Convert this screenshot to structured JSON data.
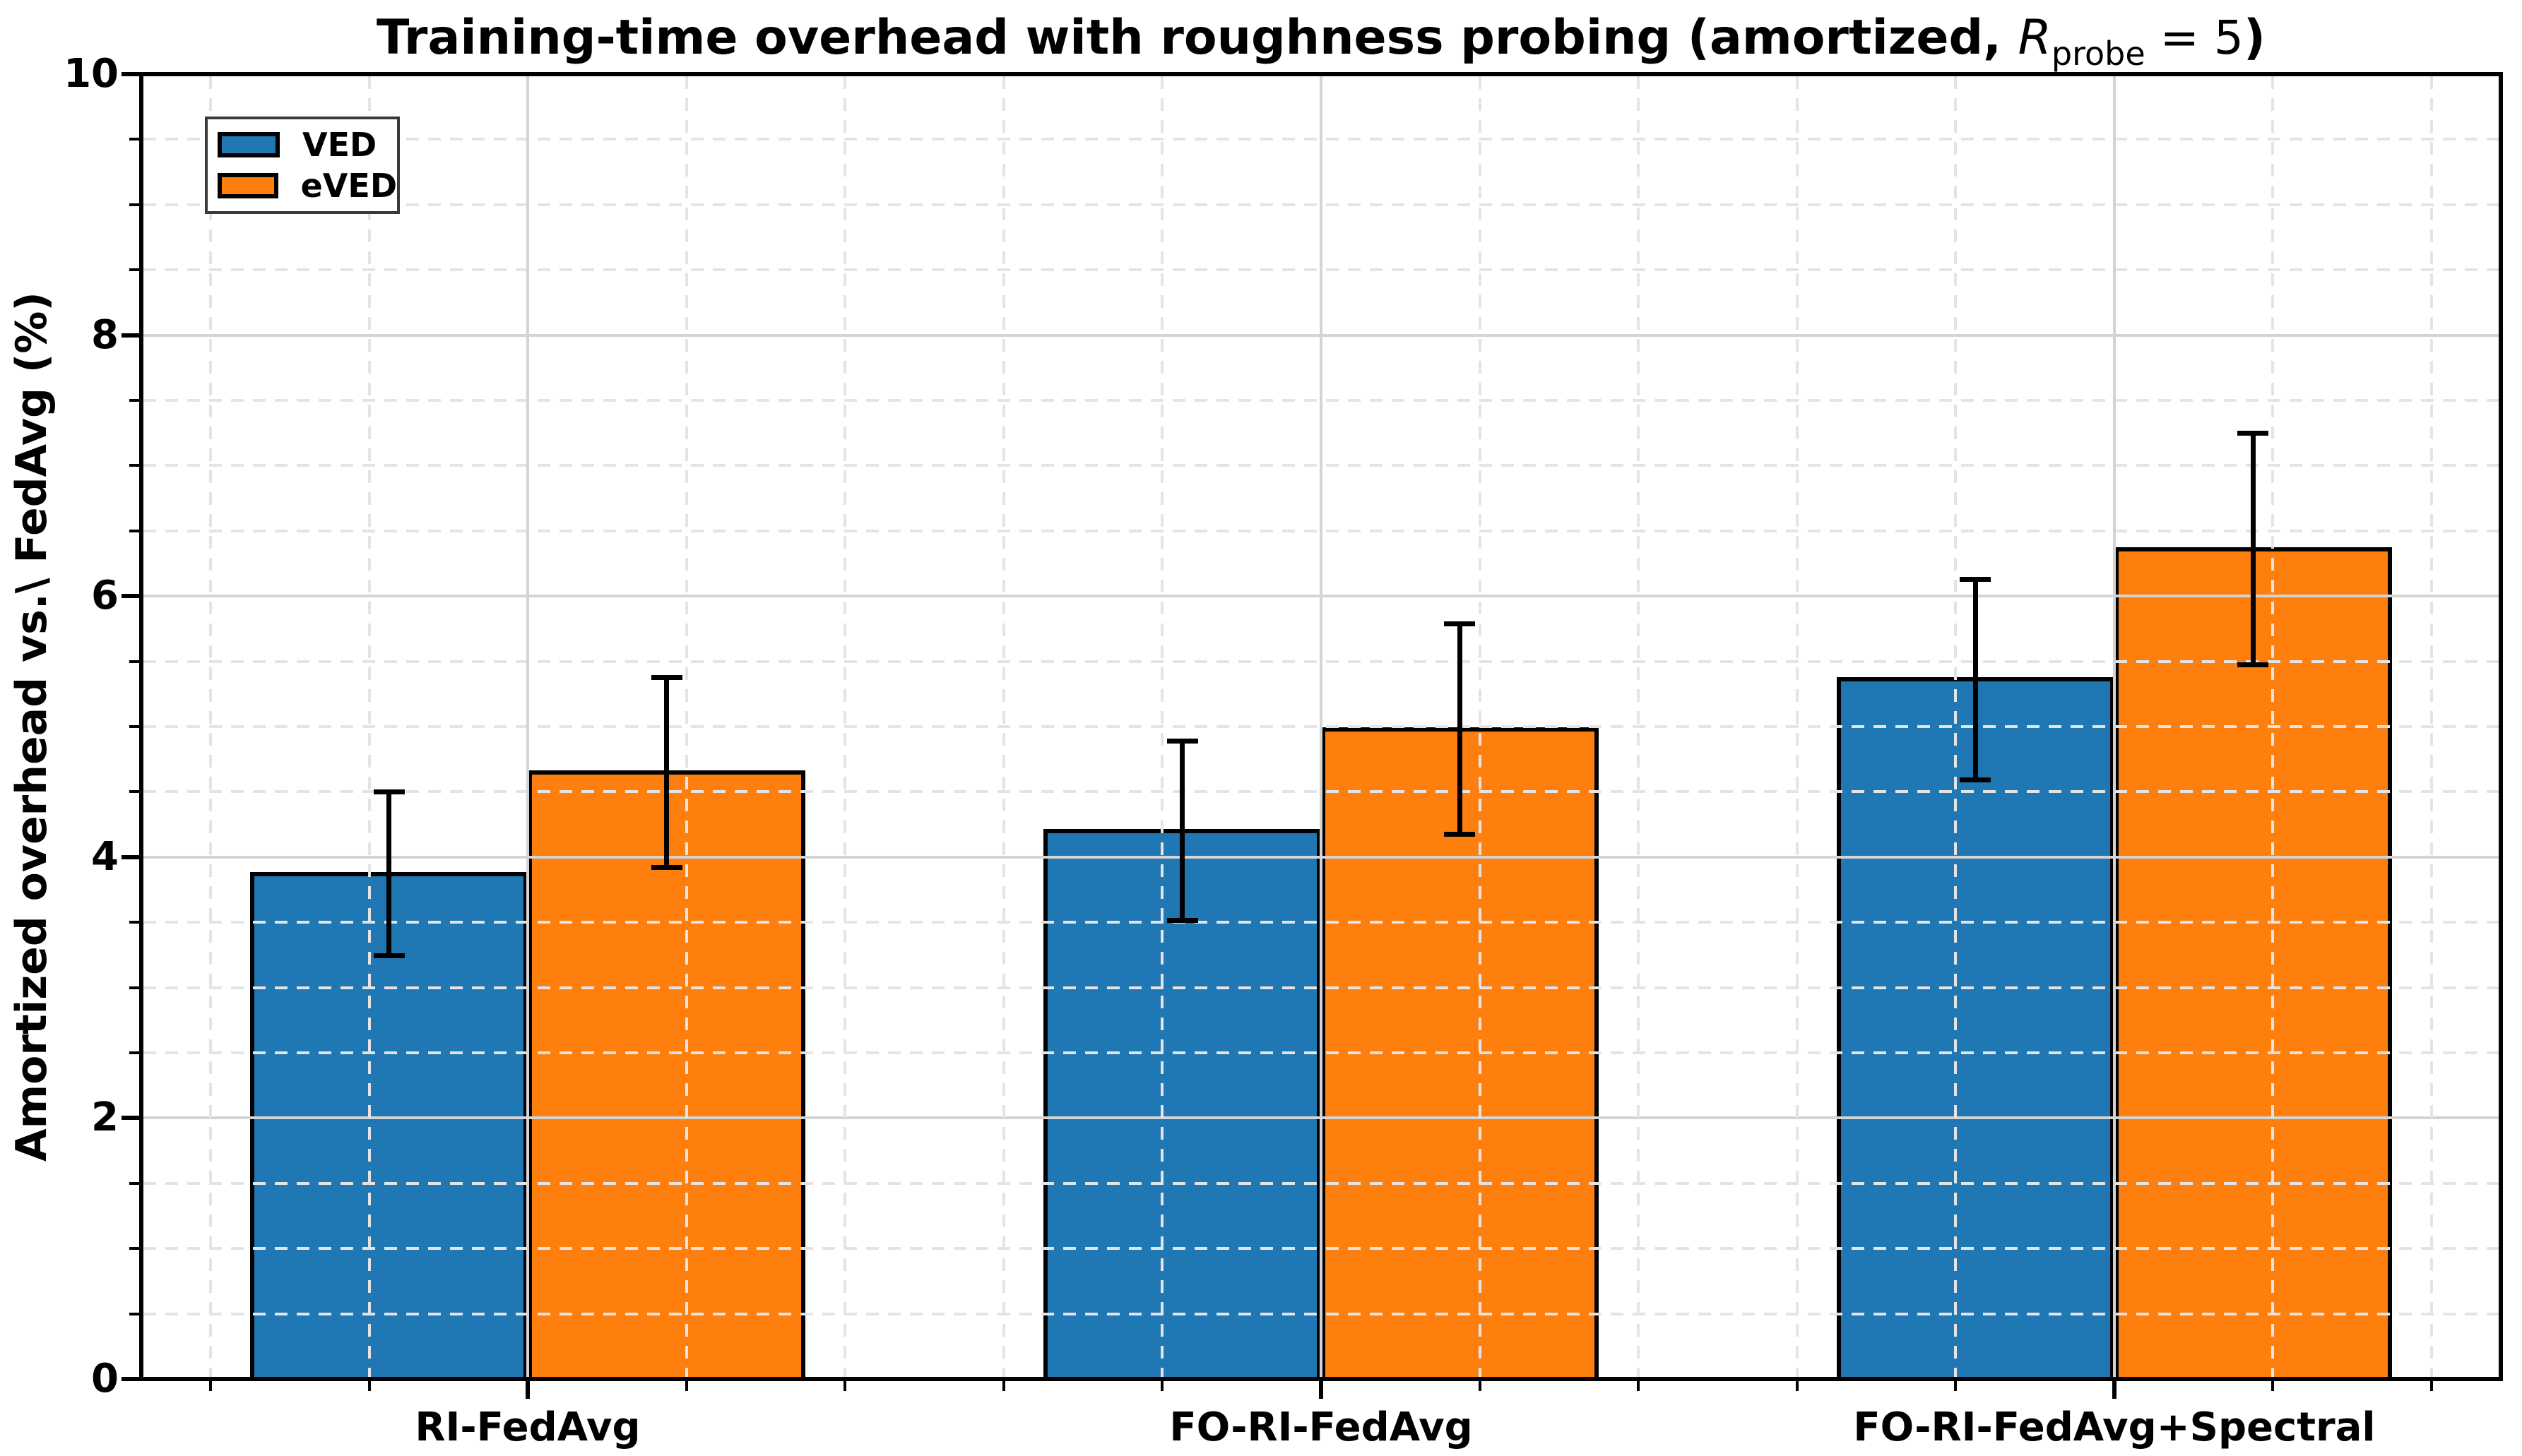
{
  "title": {
    "prefix": "Training-time overhead with roughness probing (amortized, ",
    "var": "R",
    "subscript": "probe",
    "equals": " = 5",
    "suffix": ")"
  },
  "y_axis_label": "Amortized overhead vs.\\ FedAvg (%)",
  "chart_data": {
    "type": "bar",
    "title": "Training-time overhead with roughness probing (amortized, R_probe = 5)",
    "xlabel": "",
    "ylabel": "Amortized overhead vs.\\ FedAvg (%)",
    "categories": [
      "RI-FedAvg",
      "FO-RI-FedAvg",
      "FO-RI-FedAvg+Spectral"
    ],
    "series": [
      {
        "name": "VED",
        "color": "#1f77b4",
        "values": [
          3.87,
          4.2,
          5.36
        ],
        "errors": [
          0.63,
          0.69,
          0.77
        ]
      },
      {
        "name": "eVED",
        "color": "#ff7f0e",
        "values": [
          4.65,
          4.98,
          6.36
        ],
        "errors": [
          0.73,
          0.81,
          0.89
        ]
      }
    ],
    "ylim": [
      0,
      10
    ],
    "y_major_ticks": [
      0,
      2,
      4,
      6,
      8,
      10
    ],
    "y_minor_step": 0.5,
    "x_minor_step": 0.2,
    "bar_width_fraction": 0.35,
    "grid": {
      "major_style": "solid",
      "minor_style": "dashed",
      "drawn_above_bars": true
    },
    "legend_position": "upper left",
    "error_bar_color": "#000000"
  },
  "colors": {
    "background": "#ffffff",
    "axes": "#000000",
    "grid_major": "#d4d4d4",
    "grid_minor": "#e4e4e4",
    "bar_edge": "#000000",
    "legend_border": "#3a3a3a"
  }
}
